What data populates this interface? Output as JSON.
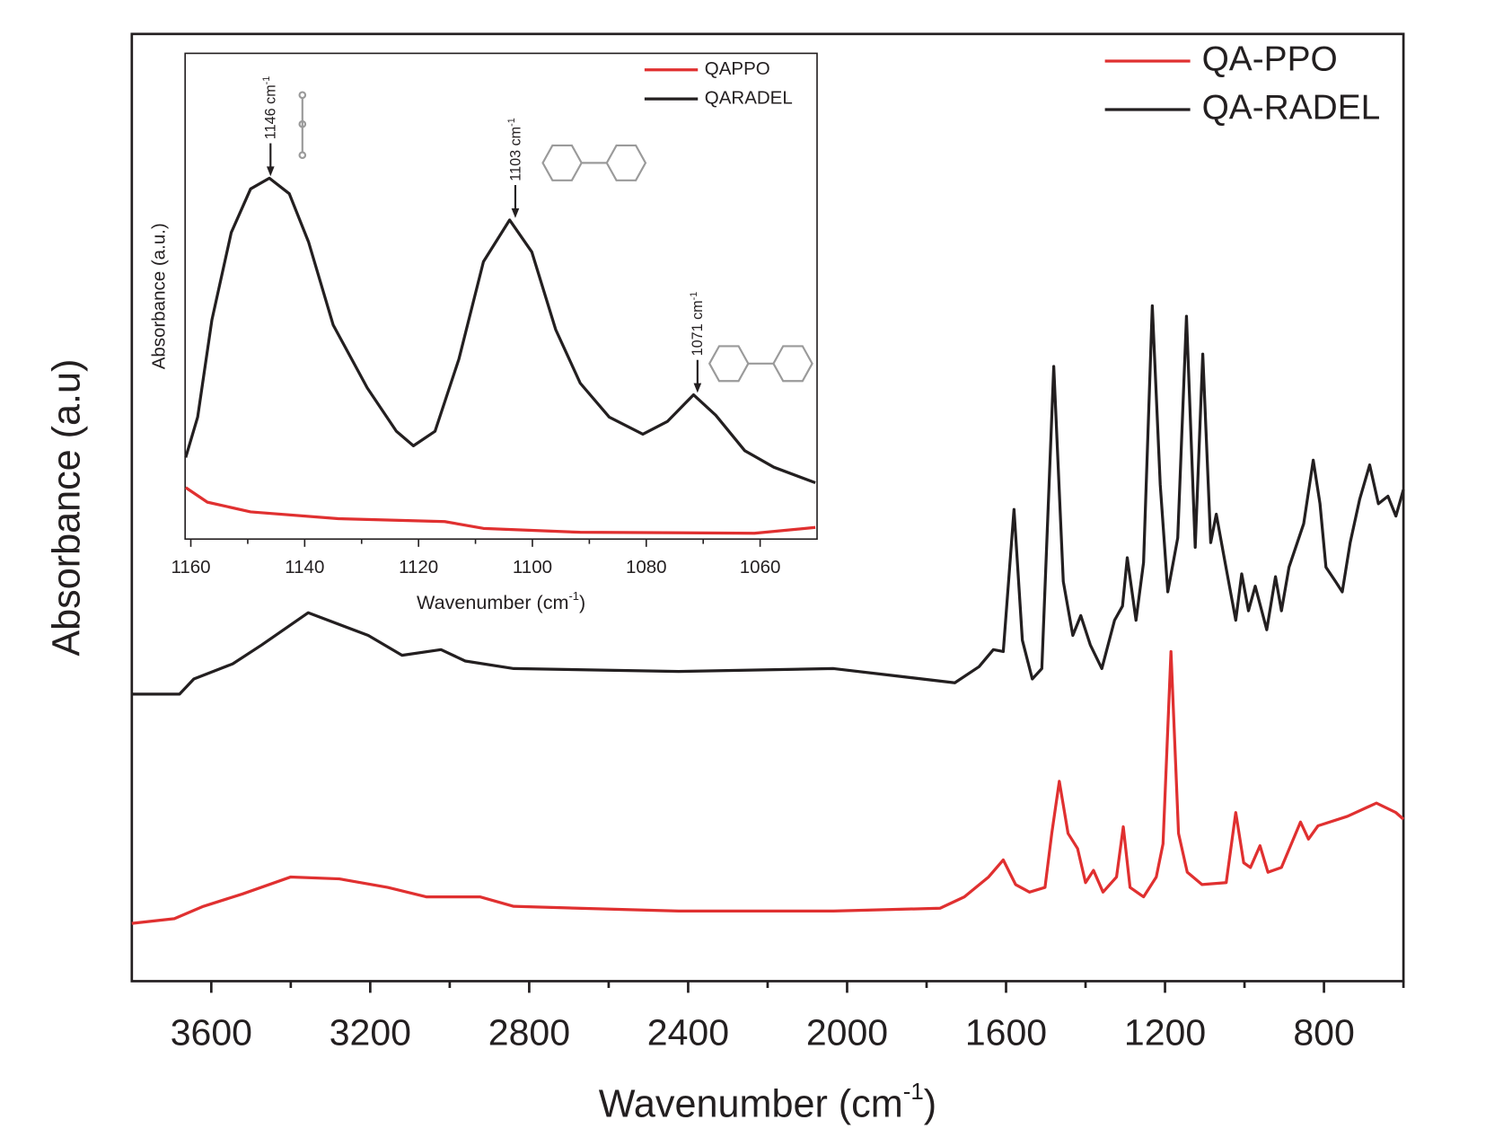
{
  "chart_data": [
    {
      "type": "line",
      "xlabel": {
        "text": "Wavenumber (cm",
        "sup": "-1",
        "end": ")"
      },
      "ylabel": "Absorbance (a.u)",
      "xlim": [
        3800,
        600
      ],
      "ylim": [
        0,
        100
      ],
      "xticks": [
        3600,
        3200,
        2800,
        2400,
        2000,
        1600,
        1200,
        800
      ],
      "xminorticks": [
        3400,
        3000,
        2600,
        2200,
        1800,
        1400,
        1000,
        600
      ],
      "legend": "upper right",
      "series": [
        {
          "name": "QA-PPO",
          "color": "#e03030",
          "x": [
            3800,
            3693,
            3620,
            3522,
            3400,
            3278,
            3156,
            3059,
            2924,
            2839,
            2424,
            2034,
            1766,
            1705,
            1644,
            1607,
            1576,
            1541,
            1502,
            1485,
            1466,
            1444,
            1420,
            1400,
            1380,
            1356,
            1322,
            1305,
            1288,
            1254,
            1222,
            1205,
            1185,
            1166,
            1144,
            1107,
            1046,
            1022,
            1002,
            985,
            961,
            941,
            907,
            859,
            839,
            815,
            741,
            668,
            619,
            600
          ],
          "values": [
            6.1,
            6.6,
            7.9,
            9.2,
            11.0,
            10.8,
            9.9,
            8.9,
            8.9,
            7.9,
            7.4,
            7.4,
            7.7,
            8.9,
            11.0,
            12.8,
            10.2,
            9.4,
            9.9,
            15.6,
            21.1,
            15.6,
            14.0,
            10.4,
            11.7,
            9.4,
            11.0,
            16.3,
            9.9,
            8.9,
            11.0,
            14.5,
            34.8,
            15.6,
            11.5,
            10.2,
            10.4,
            17.8,
            12.5,
            12.0,
            14.3,
            11.5,
            12.0,
            16.8,
            15.0,
            16.4,
            17.4,
            18.8,
            17.8,
            17.1
          ]
        },
        {
          "name": "QA-RADEL",
          "color": "#231f20",
          "x": [
            3800,
            3680,
            3644,
            3546,
            3473,
            3356,
            3205,
            3120,
            3022,
            2961,
            2839,
            2424,
            2034,
            1912,
            1729,
            1668,
            1632,
            1607,
            1580,
            1559,
            1534,
            1510,
            1480,
            1456,
            1432,
            1412,
            1388,
            1359,
            1327,
            1307,
            1295,
            1273,
            1254,
            1232,
            1212,
            1193,
            1168,
            1146,
            1124,
            1105,
            1085,
            1071,
            1051,
            1022,
            1007,
            990,
            973,
            944,
            922,
            907,
            888,
            851,
            827,
            810,
            795,
            771,
            754,
            734,
            710,
            685,
            663,
            639,
            619,
            600
          ],
          "values": [
            30.3,
            30.3,
            31.9,
            33.5,
            35.5,
            38.9,
            36.5,
            34.4,
            35.0,
            33.8,
            33.0,
            32.7,
            33.0,
            32.4,
            31.5,
            33.2,
            35.0,
            34.8,
            49.8,
            36.0,
            31.9,
            33.0,
            64.9,
            42.2,
            36.5,
            38.6,
            35.5,
            33.0,
            38.1,
            39.6,
            44.7,
            38.1,
            44.2,
            71.3,
            52.4,
            41.1,
            46.8,
            70.2,
            45.8,
            66.2,
            46.3,
            49.3,
            44.7,
            38.1,
            43.0,
            39.1,
            41.7,
            37.1,
            42.7,
            39.1,
            43.7,
            48.3,
            55.0,
            50.4,
            43.7,
            42.2,
            41.1,
            46.3,
            50.9,
            54.5,
            50.4,
            51.2,
            49.1,
            51.9
          ]
        }
      ]
    },
    {
      "type": "line",
      "xlabel": {
        "text": "Wavenumber (cm",
        "sup": "-1",
        "end": ")"
      },
      "ylabel": "Absorbance (a.u.)",
      "xlim": [
        1161,
        1050
      ],
      "ylim": [
        0,
        100
      ],
      "xticks": [
        1160,
        1140,
        1120,
        1100,
        1080,
        1060
      ],
      "xminorticks": [
        1150,
        1130,
        1110,
        1090,
        1070
      ],
      "legend": "upper right",
      "series": [
        {
          "name": "QAPPO",
          "color": "#e03030",
          "x": [
            1160.9,
            1157.1,
            1149.5,
            1134.1,
            1115.4,
            1108.6,
            1091.6,
            1061.0,
            1050.3
          ],
          "values": [
            10.6,
            7.6,
            5.6,
            4.2,
            3.6,
            2.2,
            1.4,
            1.2,
            2.4
          ]
        },
        {
          "name": "QARADEL",
          "color": "#231f20",
          "x": [
            1160.9,
            1158.8,
            1156.3,
            1152.9,
            1149.5,
            1146.2,
            1142.7,
            1139.3,
            1135.0,
            1129.0,
            1123.9,
            1120.9,
            1117.1,
            1112.9,
            1108.6,
            1104.0,
            1100.1,
            1095.9,
            1091.6,
            1086.5,
            1080.6,
            1076.3,
            1071.7,
            1067.8,
            1062.7,
            1057.6,
            1050.3
          ],
          "values": [
            16.8,
            25.1,
            45.1,
            63.1,
            72.1,
            74.3,
            71.1,
            61.1,
            44.1,
            31.1,
            22.2,
            19.2,
            22.2,
            37.1,
            57.1,
            65.7,
            59.1,
            43.1,
            32.1,
            25.1,
            21.6,
            24.2,
            29.7,
            25.5,
            18.2,
            14.8,
            11.6
          ]
        }
      ],
      "annotations": [
        {
          "text": "1146 cm",
          "sup": "-1",
          "x": 1146,
          "y": 74.3
        },
        {
          "text": "1103 cm",
          "sup": "-1",
          "x": 1103,
          "y": 65.7
        },
        {
          "text": "1071 cm",
          "sup": "-1",
          "x": 1071,
          "y": 29.7
        }
      ]
    }
  ]
}
